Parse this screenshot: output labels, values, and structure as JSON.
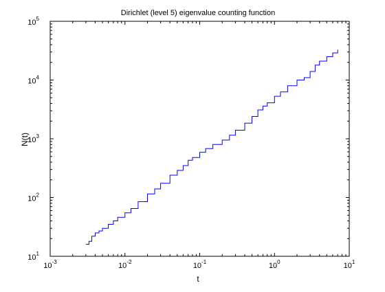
{
  "chart_data": {
    "type": "line",
    "title": "Dirichlet (level 5) eigenvalue counting function",
    "xlabel": "t",
    "ylabel": "N(t)",
    "xscale": "log",
    "yscale": "log",
    "xlim": [
      0.001,
      10
    ],
    "ylim": [
      10,
      100000
    ],
    "grid": false,
    "series_color": "#0000ff",
    "x_ticks": [
      {
        "value": 0.001,
        "base": "10",
        "exp": "-3"
      },
      {
        "value": 0.01,
        "base": "10",
        "exp": "-2"
      },
      {
        "value": 0.1,
        "base": "10",
        "exp": "-1"
      },
      {
        "value": 1,
        "base": "10",
        "exp": "0"
      },
      {
        "value": 10,
        "base": "10",
        "exp": "1"
      }
    ],
    "y_ticks": [
      {
        "value": 10,
        "base": "10",
        "exp": "1"
      },
      {
        "value": 100,
        "base": "10",
        "exp": "2"
      },
      {
        "value": 1000,
        "base": "10",
        "exp": "3"
      },
      {
        "value": 10000,
        "base": "10",
        "exp": "4"
      },
      {
        "value": 100000,
        "base": "10",
        "exp": "5"
      }
    ],
    "series": [
      {
        "x": [
          0.003,
          0.0033,
          0.0036,
          0.004,
          0.0045,
          0.005,
          0.006,
          0.007,
          0.008,
          0.01,
          0.012,
          0.015,
          0.02,
          0.025,
          0.03,
          0.04,
          0.05,
          0.06,
          0.07,
          0.08,
          0.1,
          0.12,
          0.15,
          0.2,
          0.25,
          0.3,
          0.4,
          0.5,
          0.6,
          0.7,
          0.8,
          1.0,
          1.2,
          1.5,
          2.0,
          2.5,
          3.0,
          3.5,
          4.0,
          5.0,
          6.0,
          7.0
        ],
        "y": [
          16,
          18,
          22,
          25,
          27,
          30,
          35,
          40,
          46,
          55,
          65,
          85,
          115,
          140,
          175,
          240,
          290,
          350,
          430,
          480,
          590,
          680,
          800,
          950,
          1150,
          1400,
          1850,
          2400,
          3100,
          3600,
          4100,
          5300,
          6300,
          8000,
          10000,
          11000,
          14000,
          18000,
          21000,
          25000,
          29000,
          33000
        ]
      }
    ]
  }
}
